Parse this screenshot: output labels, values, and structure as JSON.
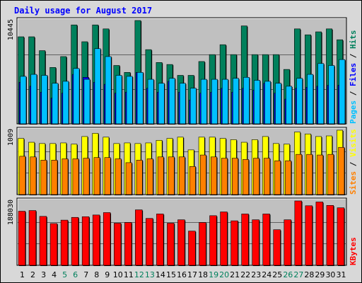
{
  "chart_data": {
    "type": "bar",
    "title": "Daily usage for August 2017",
    "categories": [
      "1",
      "2",
      "3",
      "4",
      "5",
      "6",
      "7",
      "8",
      "9",
      "10",
      "11",
      "12",
      "13",
      "14",
      "15",
      "16",
      "17",
      "18",
      "19",
      "20",
      "21",
      "22",
      "23",
      "24",
      "25",
      "26",
      "27",
      "28",
      "29",
      "30",
      "31"
    ],
    "weekend_days": [
      "5",
      "6",
      "12",
      "13",
      "19",
      "20",
      "26",
      "27"
    ],
    "colors": {
      "hits": "#00805c",
      "files": "#0000ff",
      "pages": "#00c0ff",
      "visits": "#ffff00",
      "sites": "#ff8000",
      "kbytes": "#ff0000",
      "title": "#0000ff",
      "weekend_label": "#00805c",
      "plot_bg": "#c0c0c0",
      "panel_bg": "#d8d8d8"
    },
    "panels": [
      {
        "id": "hits-files-pages",
        "max_label": "10445",
        "max": 10445,
        "legend": [
          {
            "key": "hits",
            "text": "Hits"
          },
          {
            "key": "files",
            "text": "Files"
          },
          {
            "key": "pages",
            "text": "Pages"
          }
        ],
        "series": [
          {
            "key": "hits",
            "name": "Hits",
            "values": [
              8800,
              8800,
              7400,
              5700,
              6800,
              10000,
              8300,
              10000,
              9600,
              5900,
              5200,
              10445,
              7500,
              6200,
              6000,
              4900,
              4900,
              6300,
              7000,
              8000,
              7000,
              9900,
              7000,
              7000,
              7000,
              5500,
              9600,
              9000,
              9300,
              9600,
              8500
            ]
          },
          {
            "key": "files",
            "name": "Files",
            "values": [
              4200,
              3800,
              3200,
              2600,
              3100,
              5000,
              4700,
              4200,
              4000,
              3100,
              3200,
              5200,
              3600,
              3200,
              4300,
              3200,
              2400,
              3100,
              3200,
              3600,
              3200,
              3600,
              3400,
              4100,
              3100,
              2500,
              3600,
              3700,
              3800,
              3900,
              3900
            ]
          },
          {
            "key": "pages",
            "name": "Pages",
            "values": [
              4800,
              5000,
              4900,
              4100,
              4300,
              5600,
              4500,
              7600,
              6800,
              4900,
              4800,
              5200,
              4500,
              4100,
              4600,
              4100,
              3600,
              4500,
              4500,
              4500,
              4600,
              4700,
              4400,
              4300,
              4100,
              3800,
              4600,
              5000,
              6100,
              5900,
              6500
            ]
          }
        ]
      },
      {
        "id": "visits-sites",
        "max_label": "1009",
        "max": 1009,
        "legend": [
          {
            "key": "visits",
            "text": "Visits"
          },
          {
            "key": "sites",
            "text": "Sites"
          }
        ],
        "series": [
          {
            "key": "visits",
            "name": "Visits",
            "values": [
              880,
              820,
              800,
              800,
              810,
              790,
              910,
              960,
              900,
              800,
              810,
              800,
              810,
              850,
              880,
              900,
              700,
              900,
              900,
              880,
              860,
              820,
              860,
              910,
              800,
              790,
              980,
              950,
              910,
              920,
              1009
            ]
          },
          {
            "key": "sites",
            "name": "Sites",
            "values": [
              600,
              590,
              540,
              540,
              560,
              560,
              570,
              580,
              580,
              560,
              500,
              540,
              560,
              590,
              590,
              590,
              440,
              620,
              590,
              570,
              570,
              550,
              570,
              570,
              530,
              530,
              630,
              630,
              620,
              630,
              740
            ]
          }
        ]
      },
      {
        "id": "kbytes",
        "max_label": "188030",
        "max": 188030,
        "legend": [
          {
            "key": "kbytes",
            "text": "KBytes"
          }
        ],
        "series": [
          {
            "key": "kbytes",
            "name": "KBytes",
            "values": [
              158000,
              160000,
              143000,
              122000,
              132000,
              140000,
              142000,
              147000,
              154000,
              123000,
              125000,
              162000,
              137000,
              150000,
              123000,
              133000,
              100000,
              125000,
              145000,
              156000,
              130000,
              150000,
              133000,
              150000,
              104000,
              133000,
              188030,
              174000,
              185000,
              175000,
              168000
            ]
          }
        ]
      }
    ]
  }
}
